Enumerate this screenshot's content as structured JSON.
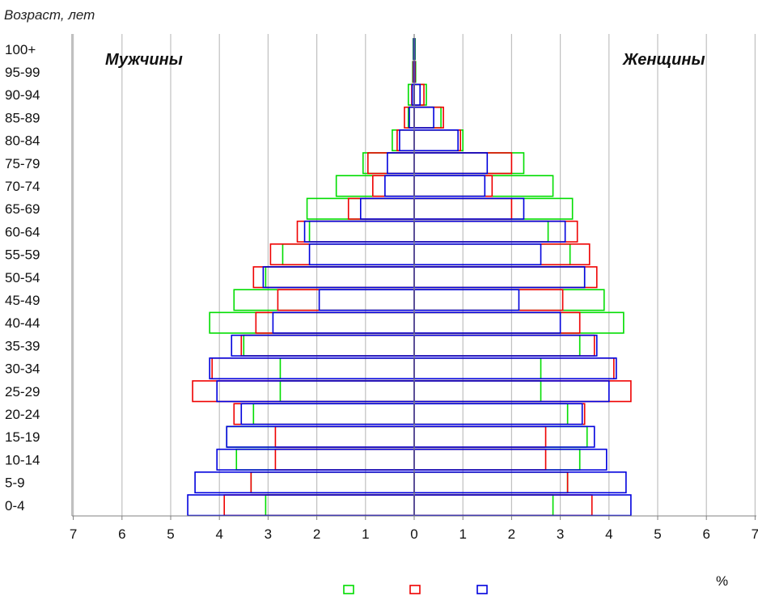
{
  "chart_data": {
    "type": "bar",
    "subtype": "population-pyramid",
    "y_axis_label": "Возраст, лет",
    "x_unit_label": "%",
    "side_labels": {
      "left": "Мужчины",
      "right": "Женщины"
    },
    "categories": [
      "0-4",
      "5-9",
      "10-14",
      "15-19",
      "20-24",
      "25-29",
      "30-34",
      "35-39",
      "40-44",
      "45-49",
      "50-54",
      "55-59",
      "60-64",
      "65-69",
      "70-74",
      "75-79",
      "80-84",
      "85-89",
      "90-94",
      "95-99",
      "100+"
    ],
    "x_ticks": [
      7,
      6,
      5,
      4,
      3,
      2,
      1,
      0,
      1,
      2,
      3,
      4,
      5,
      6,
      7
    ],
    "xlim": [
      -7,
      7
    ],
    "grid": true,
    "legend_markers": [
      "#00dd00",
      "#ee0000",
      "#0000dd"
    ],
    "series": [
      {
        "color": "#00dd00",
        "male": [
          3.05,
          3.35,
          3.65,
          3.85,
          3.3,
          2.75,
          2.75,
          3.5,
          4.2,
          3.7,
          3.05,
          2.7,
          2.15,
          2.2,
          1.6,
          1.05,
          0.45,
          0.12,
          0.12,
          0.03,
          0.02
        ],
        "female": [
          2.85,
          3.15,
          3.4,
          3.55,
          3.15,
          2.6,
          2.6,
          3.4,
          4.3,
          3.9,
          3.5,
          3.2,
          2.75,
          3.25,
          2.85,
          2.25,
          1.0,
          0.55,
          0.25,
          0.03,
          0.02
        ]
      },
      {
        "color": "#ee0000",
        "male": [
          3.9,
          3.35,
          2.85,
          2.85,
          3.7,
          4.55,
          4.15,
          3.55,
          3.25,
          2.8,
          3.3,
          2.95,
          2.4,
          1.35,
          0.85,
          0.95,
          0.35,
          0.2,
          0.05,
          0.02,
          0.01
        ],
        "female": [
          3.65,
          3.15,
          2.7,
          2.7,
          3.5,
          4.45,
          4.1,
          3.7,
          3.4,
          3.05,
          3.75,
          3.6,
          3.35,
          2.0,
          1.6,
          2.0,
          0.95,
          0.6,
          0.2,
          0.02,
          0.01
        ]
      },
      {
        "color": "#0000dd",
        "male": [
          4.65,
          4.5,
          4.05,
          3.85,
          3.55,
          4.05,
          4.2,
          3.75,
          2.9,
          1.95,
          3.1,
          2.15,
          2.25,
          1.1,
          0.6,
          0.55,
          0.3,
          0.1,
          0.04,
          0.01,
          0.01
        ],
        "female": [
          4.45,
          4.35,
          3.95,
          3.7,
          3.45,
          4.0,
          4.15,
          3.75,
          3.0,
          2.15,
          3.5,
          2.6,
          3.1,
          2.25,
          1.45,
          1.5,
          0.9,
          0.4,
          0.12,
          0.01,
          0.01
        ]
      }
    ]
  }
}
